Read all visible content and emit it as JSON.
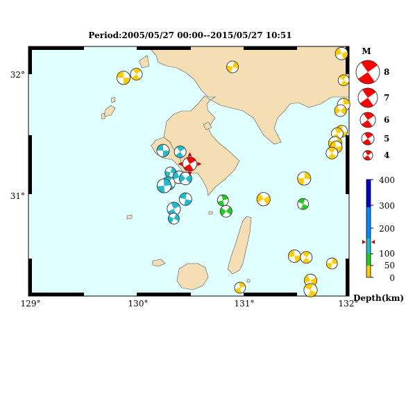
{
  "title": "Period:2005/05/27 00:00--2015/05/27 10:51",
  "lon_labels": [
    "129°",
    "130°",
    "131°",
    "132°"
  ],
  "lat_labels": [
    "32°",
    "31°"
  ],
  "magnitude_legend": {
    "title": "M",
    "values": [
      "8",
      "7",
      "6",
      "5",
      "4"
    ]
  },
  "depth_legend": {
    "ticks": [
      "400",
      "300",
      "200",
      "100",
      "50",
      "0"
    ],
    "label": "Depth(km)",
    "colors": {
      "shallow": "#ffcc00",
      "mid": "#22cc22",
      "deep1": "#22bbcc",
      "deep2": "#0088ff",
      "deep3": "#0000cc"
    }
  },
  "colors": {
    "sea": "#e0ffff",
    "land": "#f5deb3",
    "main_event": "#ff0000",
    "station_marker": "#cc0000"
  },
  "depth_marker_km": 160,
  "events": [
    {
      "lon": 129.87,
      "lat": 31.97,
      "depth": 10,
      "mag": 4.2
    },
    {
      "lon": 129.99,
      "lat": 32.0,
      "depth": 10,
      "mag": 4.0
    },
    {
      "lon": 130.89,
      "lat": 32.06,
      "depth": 10,
      "mag": 4.0
    },
    {
      "lon": 131.91,
      "lat": 32.17,
      "depth": 20,
      "mag": 4.1
    },
    {
      "lon": 131.93,
      "lat": 31.95,
      "depth": 20,
      "mag": 3.9
    },
    {
      "lon": 131.93,
      "lat": 31.75,
      "depth": 20,
      "mag": 4.1
    },
    {
      "lon": 131.9,
      "lat": 31.7,
      "depth": 20,
      "mag": 4.0
    },
    {
      "lon": 131.91,
      "lat": 31.53,
      "depth": 20,
      "mag": 4.0
    },
    {
      "lon": 131.87,
      "lat": 31.51,
      "depth": 20,
      "mag": 4.0
    },
    {
      "lon": 131.85,
      "lat": 31.43,
      "depth": 20,
      "mag": 4.2
    },
    {
      "lon": 131.86,
      "lat": 31.4,
      "depth": 20,
      "mag": 4.0
    },
    {
      "lon": 131.82,
      "lat": 31.35,
      "depth": 20,
      "mag": 4.0
    },
    {
      "lon": 131.56,
      "lat": 31.14,
      "depth": 20,
      "mag": 4.2
    },
    {
      "lon": 131.18,
      "lat": 30.97,
      "depth": 20,
      "mag": 4.2
    },
    {
      "lon": 131.55,
      "lat": 30.93,
      "depth": 80,
      "mag": 3.9
    },
    {
      "lon": 130.8,
      "lat": 30.96,
      "depth": 80,
      "mag": 3.9
    },
    {
      "lon": 130.83,
      "lat": 30.87,
      "depth": 80,
      "mag": 4.0
    },
    {
      "lon": 130.24,
      "lat": 31.37,
      "depth": 150,
      "mag": 4.1
    },
    {
      "lon": 130.4,
      "lat": 31.36,
      "depth": 150,
      "mag": 4.0
    },
    {
      "lon": 130.31,
      "lat": 31.19,
      "depth": 150,
      "mag": 3.9
    },
    {
      "lon": 130.39,
      "lat": 31.15,
      "depth": 160,
      "mag": 4.1
    },
    {
      "lon": 130.29,
      "lat": 31.1,
      "depth": 150,
      "mag": 4.2
    },
    {
      "lon": 130.25,
      "lat": 31.08,
      "depth": 150,
      "mag": 4.3
    },
    {
      "lon": 130.45,
      "lat": 31.14,
      "depth": 150,
      "mag": 4.1
    },
    {
      "lon": 130.45,
      "lat": 30.97,
      "depth": 150,
      "mag": 4.1
    },
    {
      "lon": 130.34,
      "lat": 30.89,
      "depth": 150,
      "mag": 4.2
    },
    {
      "lon": 130.34,
      "lat": 30.81,
      "depth": 150,
      "mag": 3.9
    },
    {
      "lon": 131.47,
      "lat": 30.5,
      "depth": 20,
      "mag": 4.1
    },
    {
      "lon": 131.58,
      "lat": 30.49,
      "depth": 20,
      "mag": 4.0
    },
    {
      "lon": 131.82,
      "lat": 30.44,
      "depth": 20,
      "mag": 3.9
    },
    {
      "lon": 131.62,
      "lat": 30.3,
      "depth": 20,
      "mag": 4.1
    },
    {
      "lon": 131.62,
      "lat": 30.22,
      "depth": 20,
      "mag": 4.2
    },
    {
      "lon": 130.96,
      "lat": 30.24,
      "depth": 20,
      "mag": 3.9
    }
  ],
  "main_event": {
    "lon": 130.49,
    "lat": 31.26,
    "depth": 160,
    "mag": 4.3
  }
}
